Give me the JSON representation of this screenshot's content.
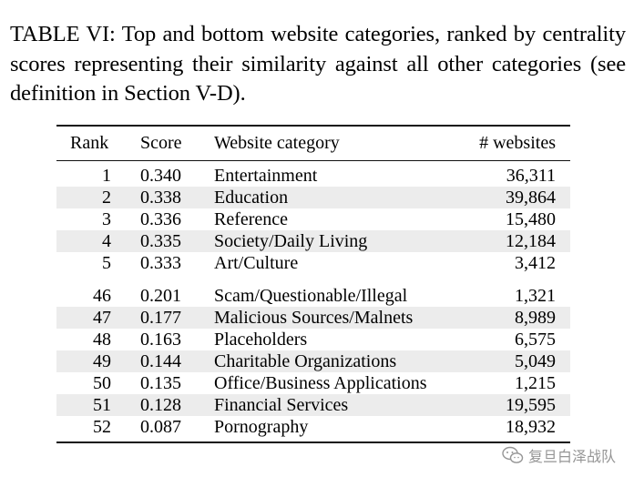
{
  "caption": "TABLE VI: Top and bottom website categories, ranked by centrality scores representing their similarity against all other categories (see definition in Section V-D).",
  "table": {
    "headers": {
      "rank": "Rank",
      "score": "Score",
      "category": "Website category",
      "websites": "# websites"
    },
    "top_rows": [
      {
        "rank": "1",
        "score": "0.340",
        "category": "Entertainment",
        "websites": "36,311"
      },
      {
        "rank": "2",
        "score": "0.338",
        "category": "Education",
        "websites": "39,864"
      },
      {
        "rank": "3",
        "score": "0.336",
        "category": "Reference",
        "websites": "15,480"
      },
      {
        "rank": "4",
        "score": "0.335",
        "category": "Society/Daily Living",
        "websites": "12,184"
      },
      {
        "rank": "5",
        "score": "0.333",
        "category": "Art/Culture",
        "websites": "3,412"
      }
    ],
    "bottom_rows": [
      {
        "rank": "46",
        "score": "0.201",
        "category": "Scam/Questionable/Illegal",
        "websites": "1,321"
      },
      {
        "rank": "47",
        "score": "0.177",
        "category": "Malicious Sources/Malnets",
        "websites": "8,989"
      },
      {
        "rank": "48",
        "score": "0.163",
        "category": "Placeholders",
        "websites": "6,575"
      },
      {
        "rank": "49",
        "score": "0.144",
        "category": "Charitable Organizations",
        "websites": "5,049"
      },
      {
        "rank": "50",
        "score": "0.135",
        "category": "Office/Business Applications",
        "websites": "1,215"
      },
      {
        "rank": "51",
        "score": "0.128",
        "category": "Financial Services",
        "websites": "19,595"
      },
      {
        "rank": "52",
        "score": "0.087",
        "category": "Pornography",
        "websites": "18,932"
      }
    ]
  },
  "watermark": {
    "text": "复旦白泽战队",
    "icon": "wechat-icon"
  },
  "colors": {
    "row_shade": "#ececec",
    "watermark": "#8a8a8a"
  }
}
